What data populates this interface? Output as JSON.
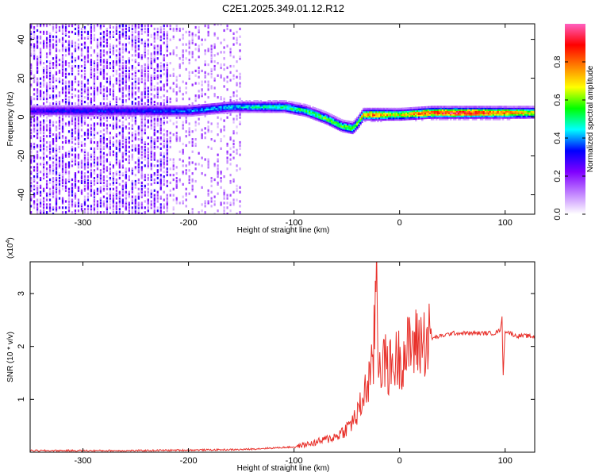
{
  "chart_data": [
    {
      "type": "heatmap",
      "title": "C2E1.2025.349.01.12.R12",
      "xlabel": "Height of straight line (km)",
      "ylabel": "Frequency (Hz)",
      "xlim": [
        -350,
        128
      ],
      "ylim": [
        -50,
        48
      ],
      "x_ticks": [
        -300,
        -200,
        -100,
        0,
        100
      ],
      "y_ticks": [
        -40,
        -20,
        0,
        20,
        40
      ],
      "colorbar": {
        "label": "Normalized spectral amplitude",
        "range": [
          0.0,
          1.0
        ],
        "ticks": [
          "0.0",
          "0.2",
          "0.4",
          "0.6",
          "0.8"
        ],
        "colors": [
          "#ffffff",
          "#c080ff",
          "#8000ff",
          "#0000ff",
          "#00ffff",
          "#00ff00",
          "#ffff00",
          "#ff8000",
          "#ff0000",
          "#ff60c0"
        ]
      },
      "ridge": {
        "x": [
          -350,
          -300,
          -250,
          -200,
          -160,
          -130,
          -110,
          -90,
          -70,
          -55,
          -45,
          -40,
          -35,
          -25,
          -10,
          0,
          30,
          60,
          90,
          128
        ],
        "freq": [
          3,
          3,
          3,
          3,
          5,
          5,
          5,
          3,
          -1,
          -5,
          -6,
          -3,
          1,
          1,
          1,
          1,
          2,
          2,
          2,
          2
        ],
        "amplitude": [
          0.3,
          0.35,
          0.35,
          0.4,
          0.45,
          0.5,
          0.55,
          0.55,
          0.6,
          0.6,
          0.65,
          0.65,
          0.8,
          0.85,
          0.75,
          0.7,
          0.9,
          0.95,
          0.85,
          0.7
        ]
      }
    },
    {
      "type": "line",
      "xlabel": "Height of straight line (km)",
      "ylabel": "SNR (10 * v/v)",
      "y_multiplier": "(x10",
      "y_multiplier_exp": "4",
      "y_multiplier_close": ")",
      "xlim": [
        -350,
        128
      ],
      "ylim": [
        0,
        3.6
      ],
      "x_ticks": [
        -300,
        -200,
        -100,
        0,
        100
      ],
      "y_ticks": [
        1,
        2,
        3
      ],
      "line_color": "#e8302a",
      "series": [
        {
          "name": "SNR",
          "x": [
            -350,
            -300,
            -250,
            -200,
            -150,
            -120,
            -100,
            -80,
            -60,
            -50,
            -40,
            -35,
            -30,
            -28,
            -25,
            -22,
            -20,
            -15,
            -10,
            -5,
            0,
            5,
            10,
            20,
            30,
            40,
            50,
            60,
            70,
            80,
            90,
            95,
            97,
            98,
            100,
            110,
            120,
            128
          ],
          "y": [
            0.03,
            0.03,
            0.03,
            0.04,
            0.05,
            0.08,
            0.1,
            0.18,
            0.3,
            0.45,
            0.7,
            1.0,
            1.3,
            1.5,
            1.55,
            3.6,
            1.75,
            1.7,
            1.6,
            1.7,
            1.8,
            1.85,
            2.0,
            2.1,
            2.15,
            2.2,
            2.25,
            2.25,
            2.25,
            2.25,
            2.25,
            2.3,
            2.55,
            1.4,
            2.3,
            2.2,
            2.2,
            2.18
          ]
        }
      ]
    }
  ]
}
